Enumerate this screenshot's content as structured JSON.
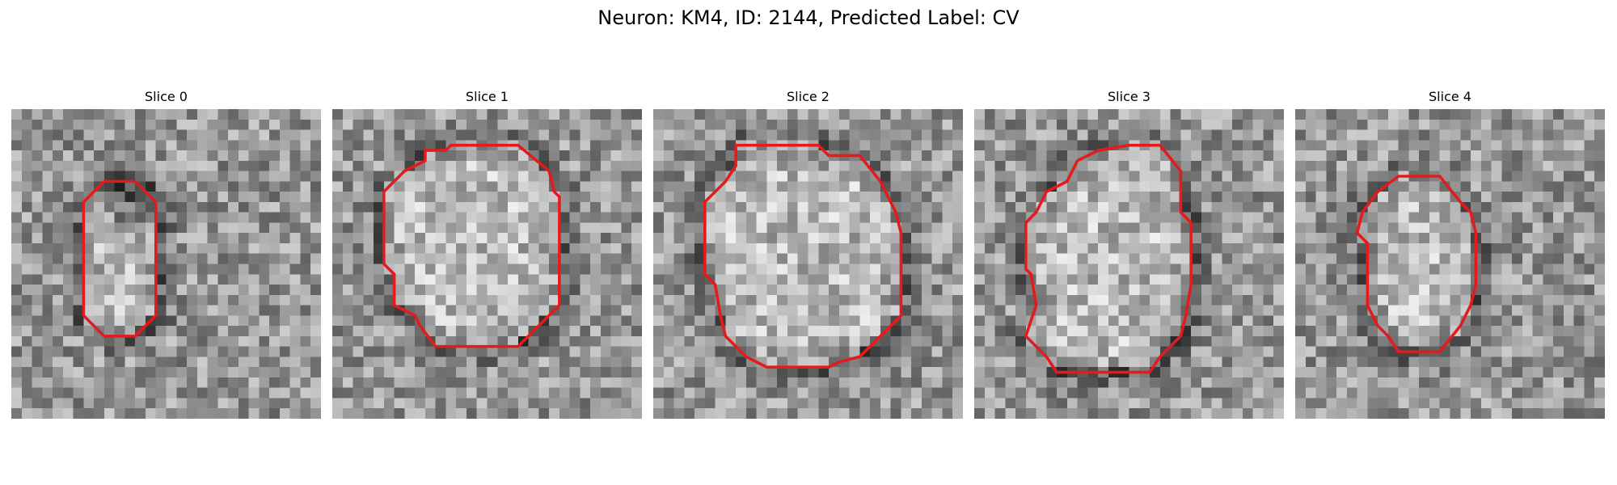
{
  "figure": {
    "title": "Neuron: KM4, ID: 2144, Predicted Label: CV"
  },
  "colors": {
    "contour": "#e41a1c",
    "background": "#ffffff"
  },
  "slices": [
    {
      "title": "Slice 0",
      "contour": [
        [
          9,
          7
        ],
        [
          12,
          7
        ],
        [
          14,
          9
        ],
        [
          14,
          20
        ],
        [
          12,
          22
        ],
        [
          9,
          22
        ],
        [
          7,
          20
        ],
        [
          7,
          9
        ]
      ],
      "features": {
        "dark_blob": [
          11,
          8.5,
          3.5,
          0.6
        ]
      }
    },
    {
      "title": "Slice 1",
      "contour": [
        [
          9,
          4
        ],
        [
          11,
          4
        ],
        [
          11.5,
          3.5
        ],
        [
          18,
          3.5
        ],
        [
          21,
          6
        ],
        [
          21.5,
          8
        ],
        [
          22,
          8.5
        ],
        [
          22,
          19
        ],
        [
          20,
          21
        ],
        [
          18,
          23
        ],
        [
          10,
          23
        ],
        [
          8.5,
          21
        ],
        [
          8,
          20
        ],
        [
          6,
          19
        ],
        [
          6,
          16
        ],
        [
          5.5,
          15.5
        ],
        [
          5,
          15
        ],
        [
          5,
          8
        ],
        [
          7,
          6
        ],
        [
          9,
          5
        ]
      ]
    },
    {
      "title": "Slice 2",
      "contour": [
        [
          8,
          3.5
        ],
        [
          16,
          3.5
        ],
        [
          17,
          4.5
        ],
        [
          20,
          4.5
        ],
        [
          22,
          7
        ],
        [
          23,
          9
        ],
        [
          23.5,
          10
        ],
        [
          24,
          12
        ],
        [
          24,
          20
        ],
        [
          22,
          22
        ],
        [
          20,
          24
        ],
        [
          18,
          24.5
        ],
        [
          17,
          25
        ],
        [
          11,
          25
        ],
        [
          9,
          24
        ],
        [
          7,
          22
        ],
        [
          6.5,
          20
        ],
        [
          6,
          17
        ],
        [
          5,
          16
        ],
        [
          5,
          9
        ],
        [
          7,
          7
        ],
        [
          8,
          5.5
        ]
      ]
    },
    {
      "title": "Slice 3",
      "contour": [
        [
          12,
          4
        ],
        [
          15,
          3.5
        ],
        [
          18,
          3.5
        ],
        [
          20,
          6
        ],
        [
          20,
          10
        ],
        [
          21,
          11
        ],
        [
          21,
          17
        ],
        [
          20.5,
          20
        ],
        [
          20,
          22
        ],
        [
          18,
          24
        ],
        [
          17,
          25.5
        ],
        [
          8,
          25.5
        ],
        [
          7,
          24
        ],
        [
          6,
          23
        ],
        [
          5,
          22
        ],
        [
          6,
          19
        ],
        [
          5.5,
          16
        ],
        [
          5,
          15.5
        ],
        [
          5,
          11
        ],
        [
          6,
          10
        ],
        [
          7,
          8
        ],
        [
          9,
          7
        ],
        [
          10,
          5
        ]
      ]
    },
    {
      "title": "Slice 4",
      "contour": [
        [
          10,
          6.5
        ],
        [
          14,
          6.5
        ],
        [
          16,
          9
        ],
        [
          17,
          10
        ],
        [
          17.5,
          12
        ],
        [
          17.5,
          17
        ],
        [
          17,
          19
        ],
        [
          16,
          21
        ],
        [
          14,
          23.5
        ],
        [
          10,
          23.5
        ],
        [
          9,
          22
        ],
        [
          8,
          21
        ],
        [
          7,
          19
        ],
        [
          7,
          13
        ],
        [
          6,
          12
        ],
        [
          6.5,
          10
        ],
        [
          8,
          8
        ]
      ]
    }
  ]
}
